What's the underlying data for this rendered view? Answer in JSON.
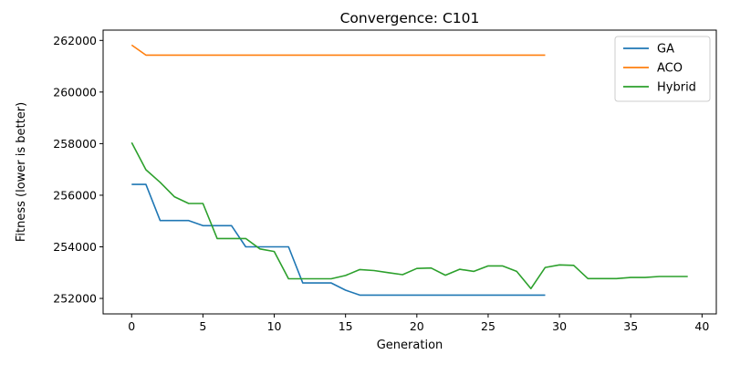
{
  "chart_data": {
    "type": "line",
    "title": "Convergence: C101",
    "xlabel": "Generation",
    "ylabel": "Fitness (lower is better)",
    "xlim": [
      -2,
      41
    ],
    "ylim": [
      251400,
      262400
    ],
    "xticks": [
      0,
      5,
      10,
      15,
      20,
      25,
      30,
      35,
      40
    ],
    "yticks": [
      252000,
      254000,
      256000,
      258000,
      260000,
      262000
    ],
    "grid": false,
    "legend_position": "top-right",
    "series": [
      {
        "name": "GA",
        "color": "#1f77b4",
        "x": [
          0,
          1,
          2,
          3,
          4,
          5,
          6,
          7,
          8,
          9,
          10,
          11,
          12,
          13,
          14,
          15,
          16,
          17,
          18,
          19,
          20,
          21,
          22,
          23,
          24,
          25,
          26,
          27,
          28,
          29
        ],
        "values": [
          256420,
          256420,
          255020,
          255020,
          255020,
          254820,
          254820,
          254820,
          254000,
          254000,
          254000,
          254000,
          252600,
          252600,
          252600,
          252320,
          252130,
          252130,
          252130,
          252130,
          252130,
          252130,
          252130,
          252130,
          252130,
          252130,
          252130,
          252130,
          252130,
          252130
        ]
      },
      {
        "name": "ACO",
        "color": "#ff7f0e",
        "x": [
          0,
          1,
          2,
          3,
          4,
          5,
          6,
          7,
          8,
          9,
          10,
          11,
          12,
          13,
          14,
          15,
          16,
          17,
          18,
          19,
          20,
          21,
          22,
          23,
          24,
          25,
          26,
          27,
          28,
          29
        ],
        "values": [
          261820,
          261430,
          261430,
          261430,
          261430,
          261430,
          261430,
          261430,
          261430,
          261430,
          261430,
          261430,
          261430,
          261430,
          261430,
          261430,
          261430,
          261430,
          261430,
          261430,
          261430,
          261430,
          261430,
          261430,
          261430,
          261430,
          261430,
          261430,
          261430,
          261430
        ]
      },
      {
        "name": "Hybrid",
        "color": "#2ca02c",
        "x": [
          0,
          1,
          2,
          3,
          4,
          5,
          6,
          7,
          8,
          9,
          10,
          11,
          12,
          13,
          14,
          15,
          16,
          17,
          18,
          19,
          20,
          21,
          22,
          23,
          24,
          25,
          26,
          27,
          28,
          29,
          30,
          31,
          32,
          33,
          34,
          35,
          36,
          37,
          38,
          39
        ],
        "values": [
          258040,
          256990,
          256500,
          255940,
          255680,
          255680,
          254320,
          254320,
          254320,
          253920,
          253820,
          252760,
          252760,
          252760,
          252760,
          252890,
          253120,
          253080,
          253000,
          252920,
          253160,
          253180,
          252900,
          253130,
          253050,
          253260,
          253260,
          253050,
          252380,
          253200,
          253300,
          253280,
          252770,
          252770,
          252770,
          252810,
          252810,
          252850,
          252850,
          252850
        ]
      }
    ]
  }
}
